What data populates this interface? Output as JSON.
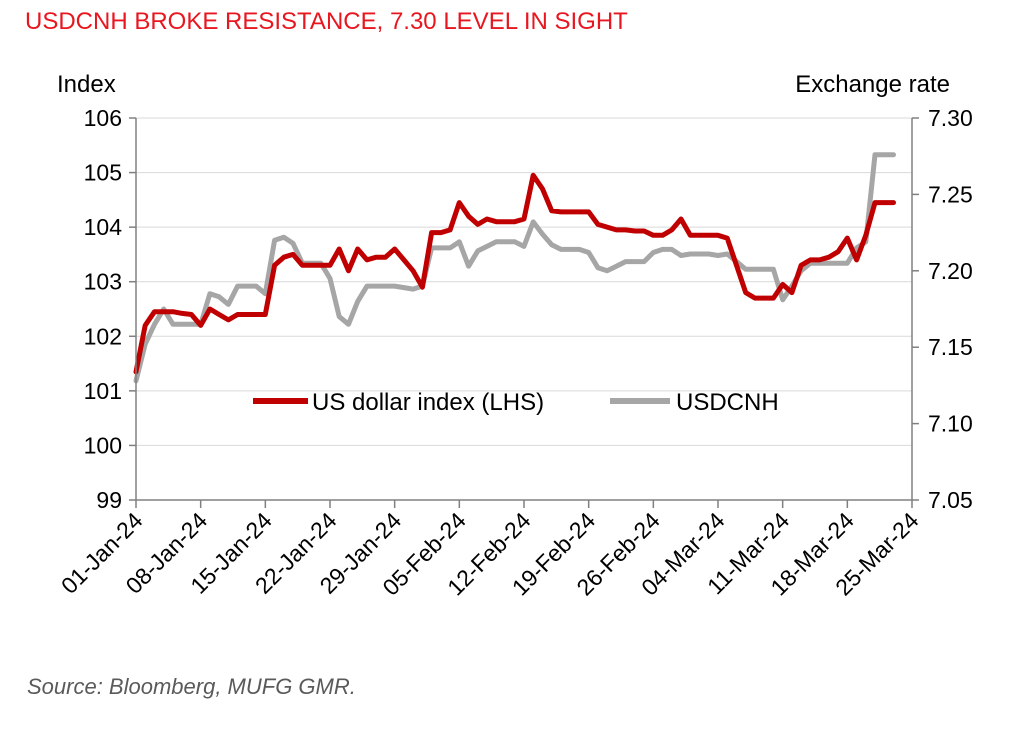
{
  "title": "USDCNH BROKE RESISTANCE, 7.30 LEVEL IN SIGHT",
  "source": "Source: Bloomberg, MUFG GMR.",
  "colors": {
    "title": "#e8161f",
    "dxy": "#c00000",
    "usdcnh": "#a6a6a6"
  },
  "chart_data": {
    "type": "line",
    "ylabel_left": "Index",
    "ylabel_right": "Exchange rate",
    "left_axis": {
      "min": 99,
      "max": 106,
      "ticks": [
        "99",
        "100",
        "101",
        "102",
        "103",
        "104",
        "105",
        "106"
      ]
    },
    "right_axis": {
      "min": 7.05,
      "max": 7.3,
      "ticks": [
        "7.05",
        "7.10",
        "7.15",
        "7.20",
        "7.25",
        "7.30"
      ]
    },
    "x_tick_labels": [
      "01-Jan-24",
      "08-Jan-24",
      "15-Jan-24",
      "22-Jan-24",
      "29-Jan-24",
      "05-Feb-24",
      "12-Feb-24",
      "19-Feb-24",
      "26-Feb-24",
      "04-Mar-24",
      "11-Mar-24",
      "18-Mar-24",
      "25-Mar-24"
    ],
    "x_day_range": [
      0,
      84
    ],
    "legend": {
      "position": "center"
    },
    "series": [
      {
        "name": "US dollar index (LHS)",
        "axis": "left",
        "points": [
          [
            0,
            101.35
          ],
          [
            1,
            102.2
          ],
          [
            2,
            102.45
          ],
          [
            3,
            102.45
          ],
          [
            4,
            102.45
          ],
          [
            5,
            102.42
          ],
          [
            6,
            102.4
          ],
          [
            7,
            102.2
          ],
          [
            8,
            102.5
          ],
          [
            9,
            102.4
          ],
          [
            10,
            102.3
          ],
          [
            11,
            102.4
          ],
          [
            12,
            102.4
          ],
          [
            13,
            102.4
          ],
          [
            14,
            102.4
          ],
          [
            15,
            103.3
          ],
          [
            16,
            103.45
          ],
          [
            17,
            103.5
          ],
          [
            18,
            103.3
          ],
          [
            19,
            103.3
          ],
          [
            20,
            103.3
          ],
          [
            21,
            103.3
          ],
          [
            22,
            103.6
          ],
          [
            23,
            103.2
          ],
          [
            24,
            103.6
          ],
          [
            25,
            103.4
          ],
          [
            26,
            103.45
          ],
          [
            27,
            103.45
          ],
          [
            28,
            103.6
          ],
          [
            29,
            103.4
          ],
          [
            30,
            103.2
          ],
          [
            31,
            102.9
          ],
          [
            32,
            103.9
          ],
          [
            33,
            103.9
          ],
          [
            34,
            103.95
          ],
          [
            35,
            104.45
          ],
          [
            36,
            104.2
          ],
          [
            37,
            104.05
          ],
          [
            38,
            104.15
          ],
          [
            39,
            104.1
          ],
          [
            40,
            104.1
          ],
          [
            41,
            104.1
          ],
          [
            42,
            104.15
          ],
          [
            43,
            104.95
          ],
          [
            44,
            104.7
          ],
          [
            45,
            104.3
          ],
          [
            46,
            104.28
          ],
          [
            47,
            104.28
          ],
          [
            48,
            104.28
          ],
          [
            49,
            104.28
          ],
          [
            50,
            104.05
          ],
          [
            51,
            104.0
          ],
          [
            52,
            103.95
          ],
          [
            53,
            103.95
          ],
          [
            54,
            103.93
          ],
          [
            55,
            103.93
          ],
          [
            56,
            103.85
          ],
          [
            57,
            103.85
          ],
          [
            58,
            103.95
          ],
          [
            59,
            104.15
          ],
          [
            60,
            103.85
          ],
          [
            61,
            103.85
          ],
          [
            62,
            103.85
          ],
          [
            63,
            103.85
          ],
          [
            64,
            103.8
          ],
          [
            65,
            103.3
          ],
          [
            66,
            102.8
          ],
          [
            67,
            102.7
          ],
          [
            68,
            102.7
          ],
          [
            69,
            102.7
          ],
          [
            70,
            102.95
          ],
          [
            71,
            102.8
          ],
          [
            72,
            103.3
          ],
          [
            73,
            103.4
          ],
          [
            74,
            103.4
          ],
          [
            75,
            103.45
          ],
          [
            76,
            103.55
          ],
          [
            77,
            103.8
          ],
          [
            78,
            103.4
          ],
          [
            79,
            103.85
          ],
          [
            80,
            104.45
          ],
          [
            81,
            104.45
          ],
          [
            82,
            104.45
          ]
        ]
      },
      {
        "name": "USDCNH",
        "axis": "right",
        "points": [
          [
            0,
            7.128
          ],
          [
            1,
            7.152
          ],
          [
            2,
            7.165
          ],
          [
            3,
            7.175
          ],
          [
            4,
            7.165
          ],
          [
            5,
            7.165
          ],
          [
            6,
            7.165
          ],
          [
            7,
            7.165
          ],
          [
            8,
            7.185
          ],
          [
            9,
            7.183
          ],
          [
            10,
            7.178
          ],
          [
            11,
            7.19
          ],
          [
            12,
            7.19
          ],
          [
            13,
            7.19
          ],
          [
            14,
            7.185
          ],
          [
            15,
            7.22
          ],
          [
            16,
            7.222
          ],
          [
            17,
            7.218
          ],
          [
            18,
            7.205
          ],
          [
            19,
            7.205
          ],
          [
            20,
            7.205
          ],
          [
            21,
            7.195
          ],
          [
            22,
            7.17
          ],
          [
            23,
            7.165
          ],
          [
            24,
            7.18
          ],
          [
            25,
            7.19
          ],
          [
            26,
            7.19
          ],
          [
            27,
            7.19
          ],
          [
            28,
            7.19
          ],
          [
            29,
            7.189
          ],
          [
            30,
            7.188
          ],
          [
            31,
            7.19
          ],
          [
            32,
            7.215
          ],
          [
            33,
            7.215
          ],
          [
            34,
            7.215
          ],
          [
            35,
            7.219
          ],
          [
            36,
            7.203
          ],
          [
            37,
            7.213
          ],
          [
            38,
            7.216
          ],
          [
            39,
            7.219
          ],
          [
            40,
            7.219
          ],
          [
            41,
            7.219
          ],
          [
            42,
            7.216
          ],
          [
            43,
            7.232
          ],
          [
            44,
            7.224
          ],
          [
            45,
            7.217
          ],
          [
            46,
            7.214
          ],
          [
            47,
            7.214
          ],
          [
            48,
            7.214
          ],
          [
            49,
            7.212
          ],
          [
            50,
            7.202
          ],
          [
            51,
            7.2
          ],
          [
            52,
            7.203
          ],
          [
            53,
            7.206
          ],
          [
            54,
            7.206
          ],
          [
            55,
            7.206
          ],
          [
            56,
            7.212
          ],
          [
            57,
            7.214
          ],
          [
            58,
            7.214
          ],
          [
            59,
            7.21
          ],
          [
            60,
            7.211
          ],
          [
            61,
            7.211
          ],
          [
            62,
            7.211
          ],
          [
            63,
            7.21
          ],
          [
            64,
            7.211
          ],
          [
            65,
            7.206
          ],
          [
            66,
            7.201
          ],
          [
            67,
            7.201
          ],
          [
            68,
            7.201
          ],
          [
            69,
            7.201
          ],
          [
            70,
            7.181
          ],
          [
            71,
            7.19
          ],
          [
            72,
            7.2
          ],
          [
            73,
            7.205
          ],
          [
            74,
            7.205
          ],
          [
            75,
            7.205
          ],
          [
            76,
            7.205
          ],
          [
            77,
            7.205
          ],
          [
            78,
            7.215
          ],
          [
            79,
            7.219
          ],
          [
            80,
            7.276
          ],
          [
            81,
            7.276
          ],
          [
            82,
            7.276
          ]
        ]
      }
    ]
  }
}
